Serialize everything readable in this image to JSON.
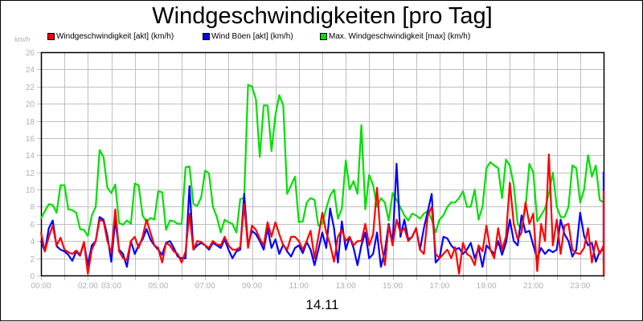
{
  "chart_data": {
    "type": "line",
    "title": "Windgeschwindigkeiten [pro Tag]",
    "xlabel": "14.11",
    "ylabel": "km/h",
    "ylim": [
      0,
      26
    ],
    "yticks": [
      0,
      2,
      4,
      6,
      8,
      10,
      12,
      14,
      16,
      18,
      20,
      22,
      24,
      26
    ],
    "xlim_hours": [
      0,
      24
    ],
    "xtick_labels": [
      {
        "label": "00:00",
        "hour": 0
      },
      {
        "label": "02:00",
        "hour": 2
      },
      {
        "label": "03:00",
        "hour": 3
      },
      {
        "label": "05:00",
        "hour": 5
      },
      {
        "label": "07:00",
        "hour": 7
      },
      {
        "label": "09:00",
        "hour": 9
      },
      {
        "label": "11:00",
        "hour": 11
      },
      {
        "label": "13:00",
        "hour": 13
      },
      {
        "label": "15:00",
        "hour": 15
      },
      {
        "label": "17:00",
        "hour": 17
      },
      {
        "label": "19:00",
        "hour": 19
      },
      {
        "label": "21:00",
        "hour": 21
      },
      {
        "label": "23:00",
        "hour": 23
      }
    ],
    "grid": true,
    "legend_position": "top",
    "x_step_minutes": 10,
    "series": [
      {
        "name": "Max. Windgeschwindigkeit [max] (km/h)",
        "color": "#00e000",
        "values": [
          6.6,
          7.5,
          8.3,
          8.2,
          7.3,
          10.5,
          10.5,
          7.7,
          7.6,
          7.3,
          5.4,
          5.3,
          4.6,
          7.0,
          8.0,
          14.6,
          13.8,
          10.2,
          9.6,
          10.6,
          6.1,
          5.9,
          6.4,
          6.0,
          10.7,
          10.5,
          7.0,
          6.2,
          6.7,
          6.5,
          9.8,
          9.7,
          5.3,
          6.4,
          6.3,
          6.0,
          6.0,
          12.6,
          12.7,
          8.3,
          8.1,
          9.1,
          12.2,
          11.9,
          8.0,
          6.8,
          5.0,
          6.5,
          6.2,
          6.0,
          5.0,
          8.9,
          9.0,
          22.2,
          22.0,
          20.5,
          13.8,
          19.8,
          19.8,
          14.5,
          18.7,
          21.0,
          19.8,
          9.5,
          10.5,
          11.5,
          6.2,
          6.3,
          8.5,
          9.0,
          8.8,
          5.8,
          6.0,
          7.8,
          9.3,
          10.0,
          6.6,
          7.8,
          13.4,
          10.0,
          11.0,
          9.5,
          17.5,
          7.7,
          11.7,
          10.5,
          8.0,
          9.0,
          8.5,
          6.4,
          9.6,
          8.8,
          7.9,
          7.0,
          6.4,
          7.2,
          7.0,
          6.6,
          7.2,
          7.5,
          6.5,
          5.0,
          6.5,
          7.0,
          8.0,
          8.5,
          8.5,
          9.0,
          9.8,
          8.0,
          8.0,
          10.0,
          6.5,
          8.0,
          12.5,
          13.2,
          12.8,
          12.5,
          9.0,
          13.5,
          12.8,
          10.5,
          6.0,
          5.4,
          7.9,
          13.0,
          12.0,
          6.3,
          7.0,
          7.8,
          9.5,
          12.0,
          8.0,
          6.8,
          6.8,
          8.0,
          12.8,
          12.5,
          8.5,
          10.0,
          14.0,
          11.5,
          12.8,
          8.8,
          8.5
        ]
      },
      {
        "name": "Wind Böen [akt] (km/h)",
        "color": "#0000ff",
        "values": [
          4.0,
          2.8,
          5.5,
          6.4,
          3.4,
          3.0,
          2.8,
          2.4,
          1.7,
          2.8,
          2.3,
          3.8,
          1.2,
          3.5,
          4.0,
          6.8,
          6.5,
          4.6,
          1.6,
          6.5,
          3.0,
          2.5,
          1.0,
          4.0,
          2.5,
          3.5,
          4.2,
          5.4,
          4.2,
          3.5,
          3.0,
          2.4,
          3.8,
          4.0,
          3.2,
          2.2,
          2.0,
          2.0,
          10.4,
          3.0,
          3.5,
          3.8,
          3.5,
          3.0,
          3.8,
          3.5,
          3.2,
          4.2,
          3.0,
          2.0,
          2.8,
          3.0,
          9.5,
          3.5,
          5.2,
          4.8,
          4.0,
          3.0,
          5.5,
          3.2,
          4.2,
          2.5,
          3.6,
          2.8,
          2.2,
          3.2,
          3.5,
          2.6,
          3.9,
          3.0,
          1.2,
          3.0,
          5.0,
          3.2,
          7.8,
          5.5,
          1.5,
          6.3,
          3.0,
          4.5,
          3.2,
          1.2,
          3.5,
          5.0,
          2.0,
          2.5,
          5.0,
          1.0,
          2.8,
          6.0,
          3.8,
          13.0,
          4.5,
          6.5,
          4.2,
          4.5,
          5.5,
          3.0,
          5.5,
          7.5,
          9.5,
          1.5,
          2.0,
          4.5,
          4.3,
          3.5,
          3.0,
          3.2,
          2.5,
          3.0,
          3.8,
          2.0,
          3.2,
          1.0,
          3.5,
          3.0,
          2.5,
          4.0,
          2.4,
          3.8,
          6.5,
          4.0,
          3.5,
          7.0,
          5.0,
          5.2,
          3.5,
          2.0,
          3.2,
          2.5,
          3.0,
          2.7,
          3.0,
          6.5,
          4.8,
          4.0,
          2.2,
          3.0,
          7.3,
          4.6,
          3.5,
          3.8,
          1.6,
          2.8,
          3.0,
          2.0,
          6.3,
          6.0,
          4.5,
          4.0,
          3.5,
          2.5,
          3.5,
          8.5,
          3.0,
          3.5,
          4.5,
          4.3,
          3.0,
          1.5,
          3.0,
          6.4,
          6.0,
          4.5,
          4.5,
          3.5,
          4.2,
          4.5,
          3.0,
          3.5,
          3.0,
          6.4,
          5.0,
          3.0,
          2.0,
          3.8,
          8.2,
          6.5,
          3.0,
          5.0,
          3.5,
          5.0,
          3.0,
          3.2,
          2.0,
          3.6,
          3.5,
          4.0,
          7.8,
          5.5,
          4.5,
          3.8,
          3.5,
          4.8,
          8.2,
          5.0,
          4.2,
          3.3,
          4.0,
          3.5,
          12.0,
          4.2,
          5.0,
          2.0,
          2.5
        ]
      },
      {
        "name": "Windgeschwindigkeit [akt] (km/h)",
        "color": "#ff0000",
        "values": [
          5.0,
          2.8,
          4.5,
          5.8,
          3.5,
          4.4,
          3.0,
          2.7,
          2.5,
          2.9,
          2.4,
          3.9,
          0.2,
          3.0,
          4.0,
          6.5,
          6.3,
          4.0,
          2.6,
          7.7,
          2.8,
          2.0,
          1.8,
          4.0,
          4.5,
          3.2,
          4.5,
          6.5,
          5.0,
          3.5,
          3.2,
          1.5,
          3.8,
          3.5,
          2.8,
          2.5,
          1.5,
          2.8,
          7.2,
          3.0,
          4.0,
          3.9,
          3.5,
          3.2,
          4.0,
          3.6,
          3.5,
          4.5,
          3.5,
          3.0,
          3.0,
          3.3,
          8.3,
          3.2,
          5.8,
          5.3,
          4.3,
          3.5,
          6.2,
          4.5,
          6.2,
          4.8,
          3.5,
          3.0,
          4.5,
          4.5,
          4.0,
          3.0,
          4.0,
          5.2,
          2.0,
          4.5,
          7.3,
          5.0,
          3.6,
          1.6,
          4.5,
          5.3,
          4.0,
          4.5,
          3.5,
          4.0,
          4.0,
          6.0,
          3.5,
          4.8,
          10.2,
          4.0,
          1.2,
          5.8,
          3.5,
          6.5,
          5.0,
          5.5,
          4.0,
          4.5,
          5.5,
          3.0,
          2.5,
          7.0,
          8.0,
          2.5,
          2.0,
          2.5,
          3.0,
          2.0,
          3.3,
          0.2,
          3.8,
          2.5,
          2.2,
          1.2,
          3.5,
          2.8,
          5.8,
          3.0,
          2.0,
          5.5,
          3.0,
          4.5,
          10.8,
          6.0,
          4.2,
          5.0,
          8.5,
          6.0,
          7.2,
          0.5,
          6.0,
          4.0,
          14.1,
          3.5,
          6.5,
          2.5,
          5.8,
          6.0,
          3.0,
          2.6,
          2.5,
          3.2,
          5.5,
          1.5,
          4.0,
          2.5,
          3.5,
          4.3,
          2.0,
          3.0,
          3.0,
          3.3,
          5.0,
          3.6,
          8.5,
          3.5,
          6.0,
          7.2,
          3.5,
          0.2,
          3.4,
          2.0,
          4.0,
          2.5,
          3.0,
          3.8,
          4.2,
          2.5,
          1.0,
          3.0,
          8.5,
          4.5,
          3.2,
          4.0,
          4.5,
          7.5,
          3.2,
          0.1,
          2.5,
          4.3,
          9.8,
          2.8,
          4.5,
          3.2,
          2.2,
          6.5,
          3.0,
          1.0,
          3.0,
          1.5,
          3.3,
          3.0,
          8.5,
          4.0,
          2.8,
          0.3,
          3.0,
          1.8,
          2.5,
          7.8,
          6.0,
          2.5,
          3.5,
          7.0,
          5.6,
          2.0,
          3.0,
          3.5,
          5.0,
          6.3,
          3.5,
          2.6,
          3.2,
          3.0,
          5.0,
          3.5,
          2.5,
          3.5,
          2.0,
          4.5,
          6.0,
          2.5,
          7.5,
          3.0,
          3.5,
          4.0,
          5.5,
          3.2,
          4.0,
          7.5,
          4.2,
          8.5,
          4.0,
          8.5,
          1.5,
          0.2,
          2.5
        ]
      }
    ]
  },
  "header": {
    "title": "Windgeschwindigkeiten [pro Tag]",
    "unit_label": "km/h"
  },
  "legend": {
    "items": [
      {
        "label": "Windgeschwindigkeit [akt] (km/h)",
        "color": "#ff0000"
      },
      {
        "label": "Wind Böen [akt] (km/h)",
        "color": "#0000ff"
      },
      {
        "label": "Max. Windgeschwindigkeit [max] (km/h)",
        "color": "#00e000"
      }
    ]
  },
  "footer": {
    "date_label": "14.11"
  }
}
